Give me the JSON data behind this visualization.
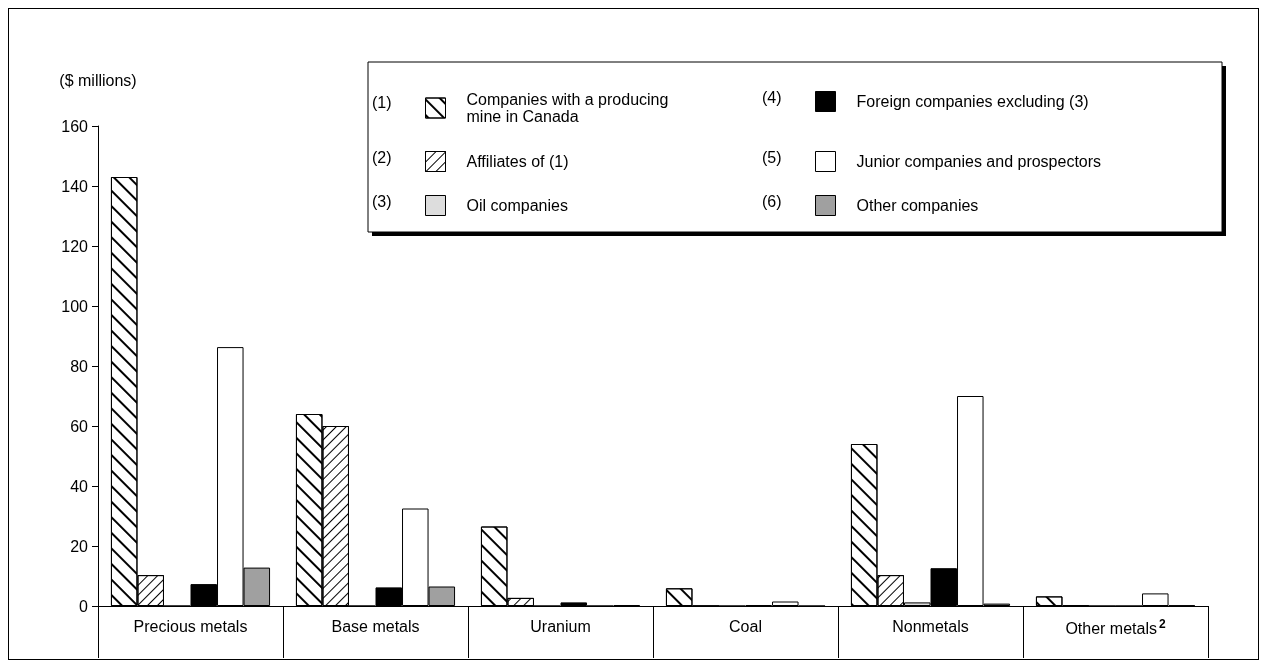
{
  "chart_data": {
    "type": "bar",
    "ylabel": "($ millions)",
    "categories": [
      "Precious metals",
      "Base metals",
      "Uranium",
      "Coal",
      "Nonmetals",
      "Other metals$^{2}$"
    ],
    "series": [
      {
        "name": "Companies with a producing mine in Canada",
        "color": "#ffffff",
        "values": [
          143,
          64,
          26.5,
          5.9,
          54,
          3.2
        ]
      },
      {
        "name": "Affiliates of (1)",
        "color": "#ffffff",
        "values": [
          10.3,
          60,
          2.7,
          0,
          10.3,
          0.2
        ]
      },
      {
        "name": "Oil companies",
        "color": "#dddddd",
        "values": [
          0,
          0,
          0,
          0,
          1.2,
          0
        ]
      },
      {
        "name": "Foreign companies excluding (3)",
        "color": "#000000",
        "values": [
          7.3,
          6.2,
          1.2,
          0.3,
          12.6,
          0
        ]
      },
      {
        "name": "Junior companies and prospectors",
        "color": "#ffffff",
        "values": [
          86.3,
          32.5,
          0,
          1.5,
          70,
          4.2
        ]
      },
      {
        "name": "Other companies",
        "color": "#a0a0a0",
        "values": [
          12.8,
          6.5,
          0.3,
          0,
          0.8,
          0.2
        ]
      }
    ],
    "annotations": [
      "(1)",
      "(2)",
      "(3)",
      "(4)",
      "(5)",
      "(6)"
    ],
    "ylim": [
      0,
      160
    ],
    "yticks": [
      0,
      20,
      40,
      60,
      80,
      100,
      120,
      140,
      160
    ],
    "grid": false,
    "legend": "top right"
  }
}
